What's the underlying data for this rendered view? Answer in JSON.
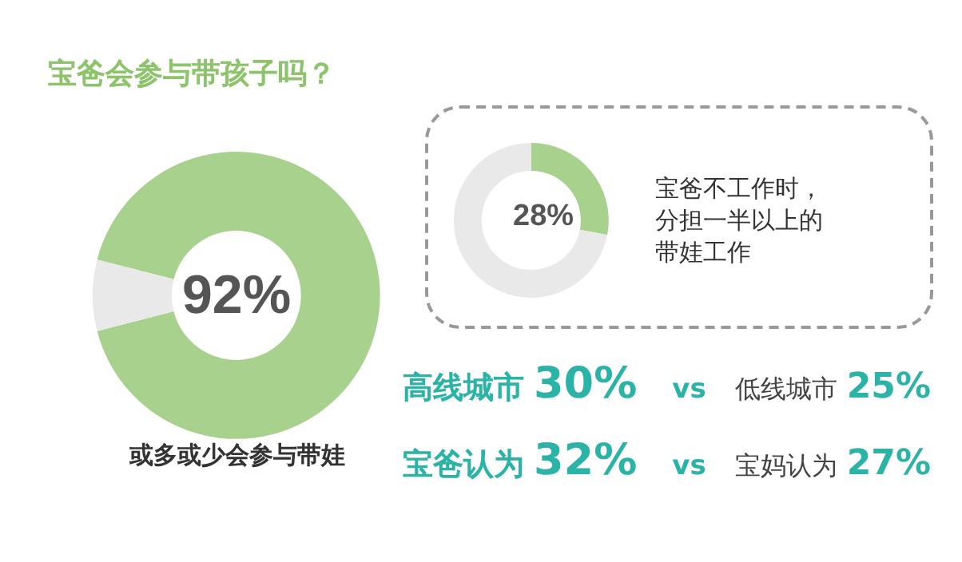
{
  "chart_data": [
    {
      "type": "donut",
      "title": "宝爸会参与带孩子吗？",
      "categories": [
        null,
        null
      ],
      "values": [
        92,
        8
      ],
      "colors": [
        "#a9d18e",
        "#e9e9e9"
      ],
      "value_labels": [
        "92%",
        null
      ],
      "annotations": [
        "或多或少会参与带娃"
      ]
    },
    {
      "type": "donut",
      "categories": [
        null,
        null
      ],
      "values": [
        28,
        72
      ],
      "colors": [
        "#a9d18e",
        "#e9e9e9"
      ],
      "value_labels": [
        "28%",
        null
      ],
      "annotations": [
        "宝爸不工作时，",
        "分担一半以上的",
        "带娃工作"
      ]
    },
    {
      "type": "other",
      "annotations": [
        "高线城市",
        "30%",
        "vs",
        "低线城市",
        "25%",
        "宝爸认为",
        "32%",
        "vs",
        "宝妈认为",
        "27%"
      ]
    }
  ]
}
